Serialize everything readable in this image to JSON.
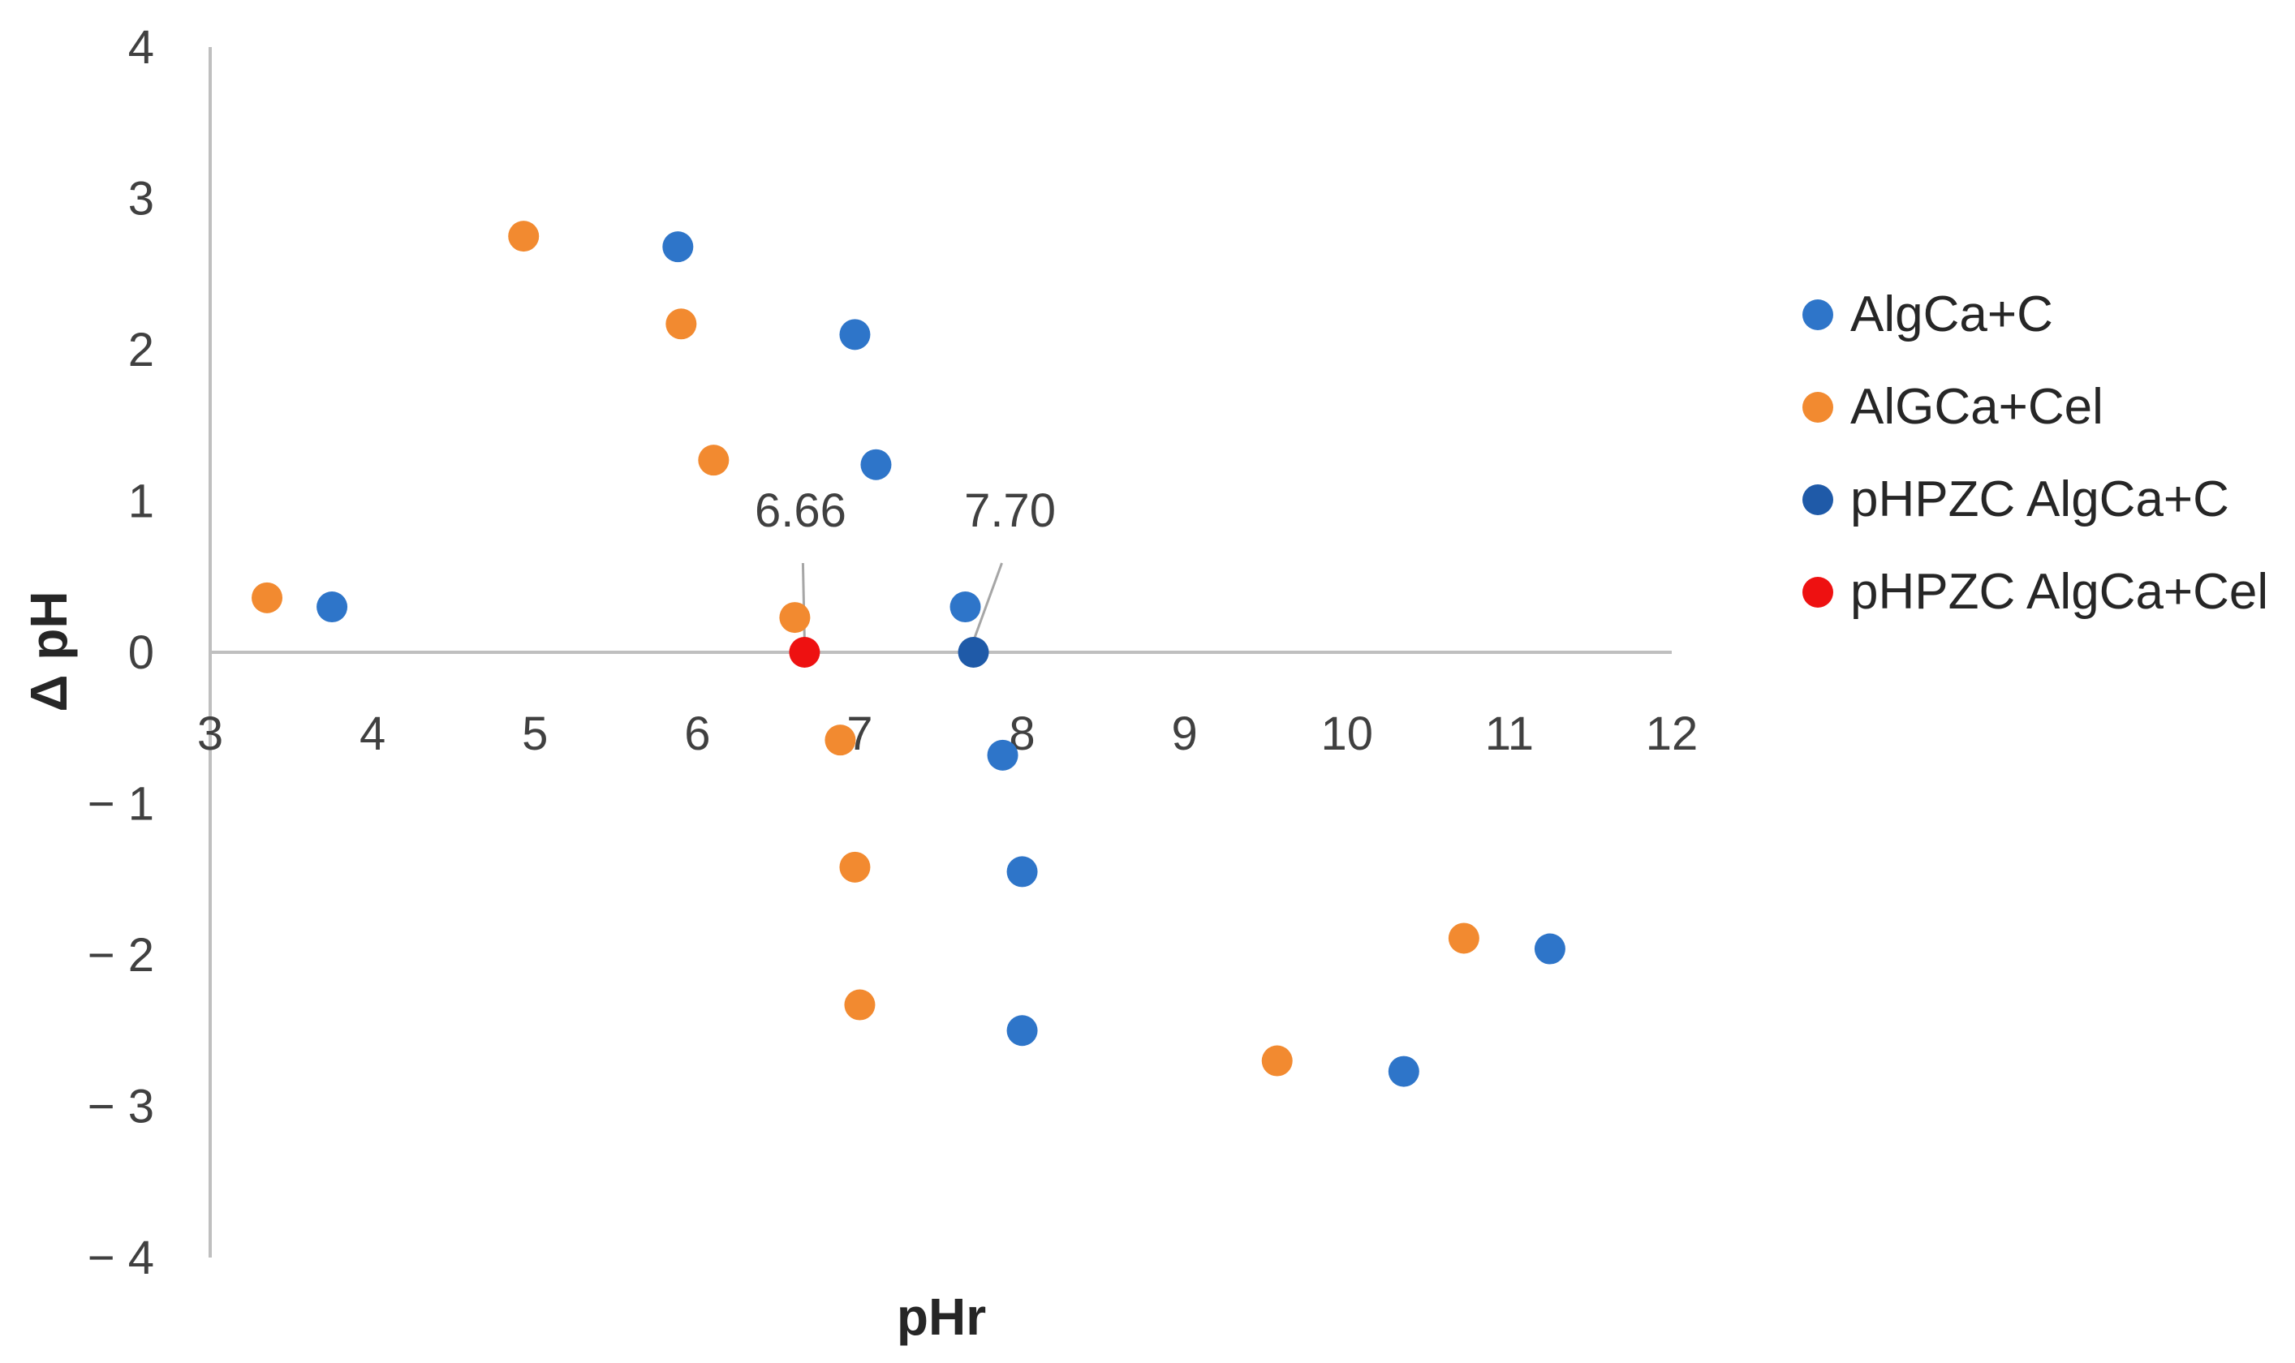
{
  "chart_data": {
    "type": "scatter",
    "xlabel": "pHr",
    "ylabel": "Δ pH",
    "xlim": [
      3,
      12
    ],
    "ylim": [
      -4,
      4
    ],
    "x_ticks": [
      3,
      4,
      5,
      6,
      7,
      8,
      9,
      10,
      11,
      12
    ],
    "y_ticks": [
      4,
      3,
      2,
      1,
      0,
      -1,
      -2,
      -3,
      -4
    ],
    "x_tick_labels": [
      "3",
      "4",
      "5",
      "6",
      "7",
      "8",
      "9",
      "10",
      "11",
      "12"
    ],
    "y_tick_labels": [
      "4",
      "3",
      "2",
      "1",
      "0",
      "− 1",
      "− 2",
      "− 3",
      "− 4"
    ],
    "grid": false,
    "legend_position": "right",
    "series": [
      {
        "name": "AlgCa+C",
        "color": "#2e75c9",
        "points": [
          [
            3.75,
            0.3
          ],
          [
            5.88,
            2.68
          ],
          [
            6.97,
            2.1
          ],
          [
            7.1,
            1.24
          ],
          [
            7.65,
            0.3
          ],
          [
            7.88,
            -0.68
          ],
          [
            8.0,
            -1.45
          ],
          [
            8.0,
            -2.5
          ],
          [
            10.35,
            -2.77
          ],
          [
            11.25,
            -1.96
          ]
        ]
      },
      {
        "name": "AlGCa+Cel",
        "color": "#f28a30",
        "points": [
          [
            3.35,
            0.36
          ],
          [
            4.93,
            2.75
          ],
          [
            5.9,
            2.17
          ],
          [
            6.1,
            1.27
          ],
          [
            6.6,
            0.23
          ],
          [
            6.88,
            -0.58
          ],
          [
            6.97,
            -1.42
          ],
          [
            7.0,
            -2.33
          ],
          [
            9.57,
            -2.7
          ],
          [
            10.72,
            -1.89
          ]
        ]
      },
      {
        "name": "pHPZC AlgCa+C",
        "color": "#1f5aa8",
        "points": [
          [
            7.7,
            0.0
          ]
        ]
      },
      {
        "name": "pHPZC AlgCa+Cel",
        "color": "#ee1111",
        "points": [
          [
            6.66,
            0.0
          ]
        ]
      }
    ],
    "annotations": [
      {
        "text": "6.66",
        "x": 6.66,
        "y": 0
      },
      {
        "text": "7.70",
        "x": 7.7,
        "y": 0
      }
    ]
  }
}
